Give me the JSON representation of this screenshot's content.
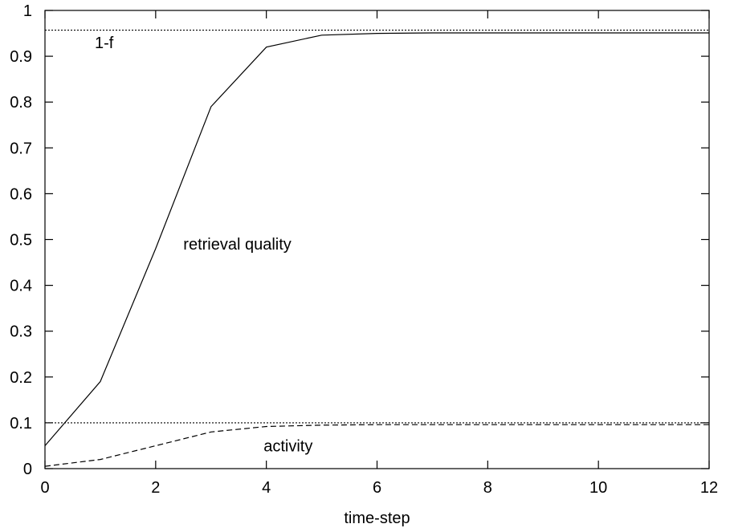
{
  "chart_data": {
    "type": "line",
    "title": "",
    "xlabel": "time-step",
    "ylabel": "",
    "xlim": [
      0,
      12
    ],
    "ylim": [
      0,
      1
    ],
    "xticks": [
      0,
      2,
      4,
      6,
      8,
      10,
      12
    ],
    "yticks": [
      0,
      0.1,
      0.2,
      0.3,
      0.4,
      0.5,
      0.6,
      0.7,
      0.8,
      0.9,
      1
    ],
    "grid": false,
    "legend": "none",
    "series": [
      {
        "label": "retrieval quality",
        "style": "solid",
        "x": [
          0,
          1,
          2,
          3,
          4,
          5,
          6,
          7,
          8,
          9,
          10,
          11,
          12
        ],
        "y": [
          0.05,
          0.19,
          0.48,
          0.79,
          0.92,
          0.946,
          0.95,
          0.951,
          0.951,
          0.951,
          0.951,
          0.951,
          0.951
        ]
      },
      {
        "label": "activity",
        "style": "dashed",
        "x": [
          0,
          1,
          2,
          3,
          4,
          5,
          6,
          7,
          8,
          9,
          10,
          11,
          12
        ],
        "y": [
          0.005,
          0.02,
          0.05,
          0.08,
          0.092,
          0.095,
          0.096,
          0.096,
          0.096,
          0.096,
          0.096,
          0.096,
          0.096
        ]
      }
    ],
    "reference_lines": [
      {
        "label": "1-f",
        "y": 0.957,
        "style": "dotted"
      },
      {
        "label": "",
        "y": 0.1,
        "style": "dotted"
      }
    ],
    "annotations": [
      {
        "text": "1-f",
        "x": 0.9,
        "y": 0.93
      },
      {
        "text": "retrieval quality",
        "x": 2.5,
        "y": 0.49
      },
      {
        "text": "activity",
        "x": 3.95,
        "y": 0.05
      }
    ]
  }
}
